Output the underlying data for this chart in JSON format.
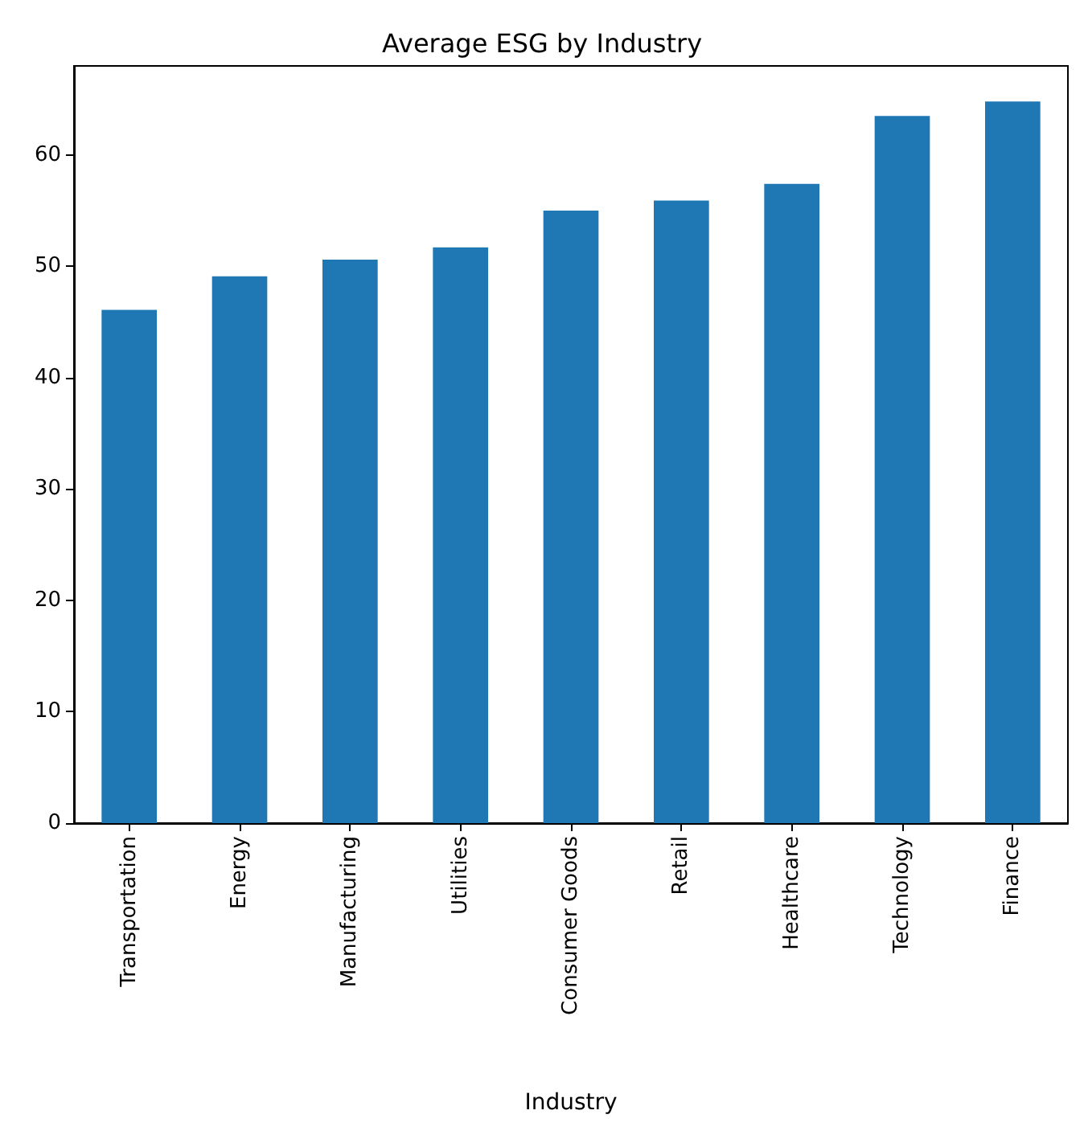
{
  "chart_data": {
    "type": "bar",
    "title": "Average ESG by Industry",
    "xlabel": "Industry",
    "categories": [
      "Transportation",
      "Energy",
      "Manufacturing",
      "Utilities",
      "Consumer Goods",
      "Retail",
      "Healthcare",
      "Technology",
      "Finance"
    ],
    "values": [
      46.1,
      49.1,
      50.6,
      51.7,
      55.0,
      55.9,
      57.4,
      63.5,
      64.8
    ],
    "color": "#1f77b4",
    "ylim": [
      0,
      68
    ],
    "yticks": [
      0,
      10,
      20,
      30,
      40,
      50,
      60
    ],
    "grid": false
  }
}
